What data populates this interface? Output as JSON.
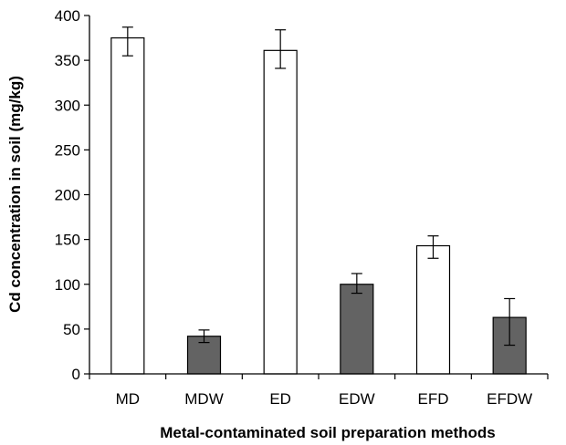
{
  "chart_data": {
    "type": "bar",
    "title": "",
    "xlabel": "Metal-contaminated soil preparation methods",
    "ylabel": "Cd concentration in soil (mg/kg)",
    "ylim": [
      0,
      400
    ],
    "yticks": [
      0,
      50,
      100,
      150,
      200,
      250,
      300,
      350,
      400
    ],
    "grid": false,
    "legend": "none",
    "categories": [
      "MD",
      "MDW",
      "ED",
      "EDW",
      "EFD",
      "EFDW"
    ],
    "values": [
      375,
      42,
      361,
      100,
      143,
      63
    ],
    "error_low": [
      355,
      35,
      341,
      90,
      129,
      32
    ],
    "error_high": [
      387,
      49,
      384,
      112,
      154,
      84
    ],
    "bar_fill": [
      "#ffffff",
      "#636363",
      "#ffffff",
      "#636363",
      "#ffffff",
      "#636363"
    ],
    "bar_edge": "#000000"
  }
}
